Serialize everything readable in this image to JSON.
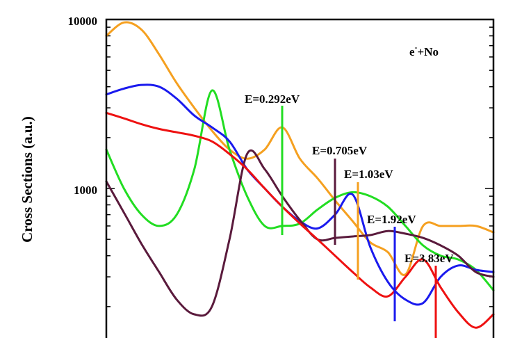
{
  "chart_data": {
    "type": "line",
    "title": "",
    "xlabel": "",
    "ylabel": "Cross Sections (a.u.)",
    "y_scale": "log",
    "ylim": [
      200,
      10000
    ],
    "y_ticks": [
      {
        "value": 1000,
        "label": "1000"
      },
      {
        "value": 10000,
        "label": "10000"
      }
    ],
    "legend": {
      "text": "e-+No",
      "base": "e",
      "sup": "-",
      "rest": "+No",
      "position": "top-right"
    },
    "annotations": [
      {
        "label": "E=0.292eV",
        "color": "#22dd22"
      },
      {
        "label": "E=0.705eV",
        "color": "#5a1a3c"
      },
      {
        "label": "E=1.03eV",
        "color": "#f5a020"
      },
      {
        "label": "E=1.92eV",
        "color": "#1a1aee"
      },
      {
        "label": "E=3.83eV",
        "color": "#ee1111"
      }
    ],
    "series": [
      {
        "color": "#f5a020",
        "values": [
          8000,
          9600,
          8700,
          6200,
          4200,
          3000,
          2200,
          1700,
          1500,
          1700,
          2300,
          1500,
          1150,
          850,
          640,
          480,
          420,
          310,
          600,
          600,
          600,
          600,
          550
        ]
      },
      {
        "color": "#22dd22",
        "values": [
          1700,
          1000,
          700,
          600,
          700,
          1300,
          3800,
          1700,
          900,
          600,
          600,
          620,
          750,
          880,
          950,
          900,
          780,
          600,
          460,
          400,
          380,
          330,
          250
        ]
      },
      {
        "color": "#1a1aee",
        "values": [
          3600,
          3900,
          4100,
          4000,
          3400,
          2700,
          2300,
          1900,
          1300,
          1000,
          780,
          640,
          580,
          700,
          920,
          450,
          280,
          220,
          210,
          300,
          350,
          330,
          320
        ]
      },
      {
        "color": "#5a1a3c",
        "values": [
          1100,
          720,
          470,
          320,
          220,
          180,
          200,
          500,
          1600,
          1300,
          900,
          650,
          500,
          510,
          520,
          530,
          560,
          540,
          510,
          460,
          400,
          320,
          300
        ]
      },
      {
        "color": "#ee1111",
        "values": [
          2800,
          2600,
          2400,
          2250,
          2150,
          2050,
          1900,
          1600,
          1300,
          1000,
          780,
          620,
          500,
          400,
          320,
          260,
          230,
          300,
          380,
          260,
          185,
          150,
          180
        ]
      }
    ]
  }
}
